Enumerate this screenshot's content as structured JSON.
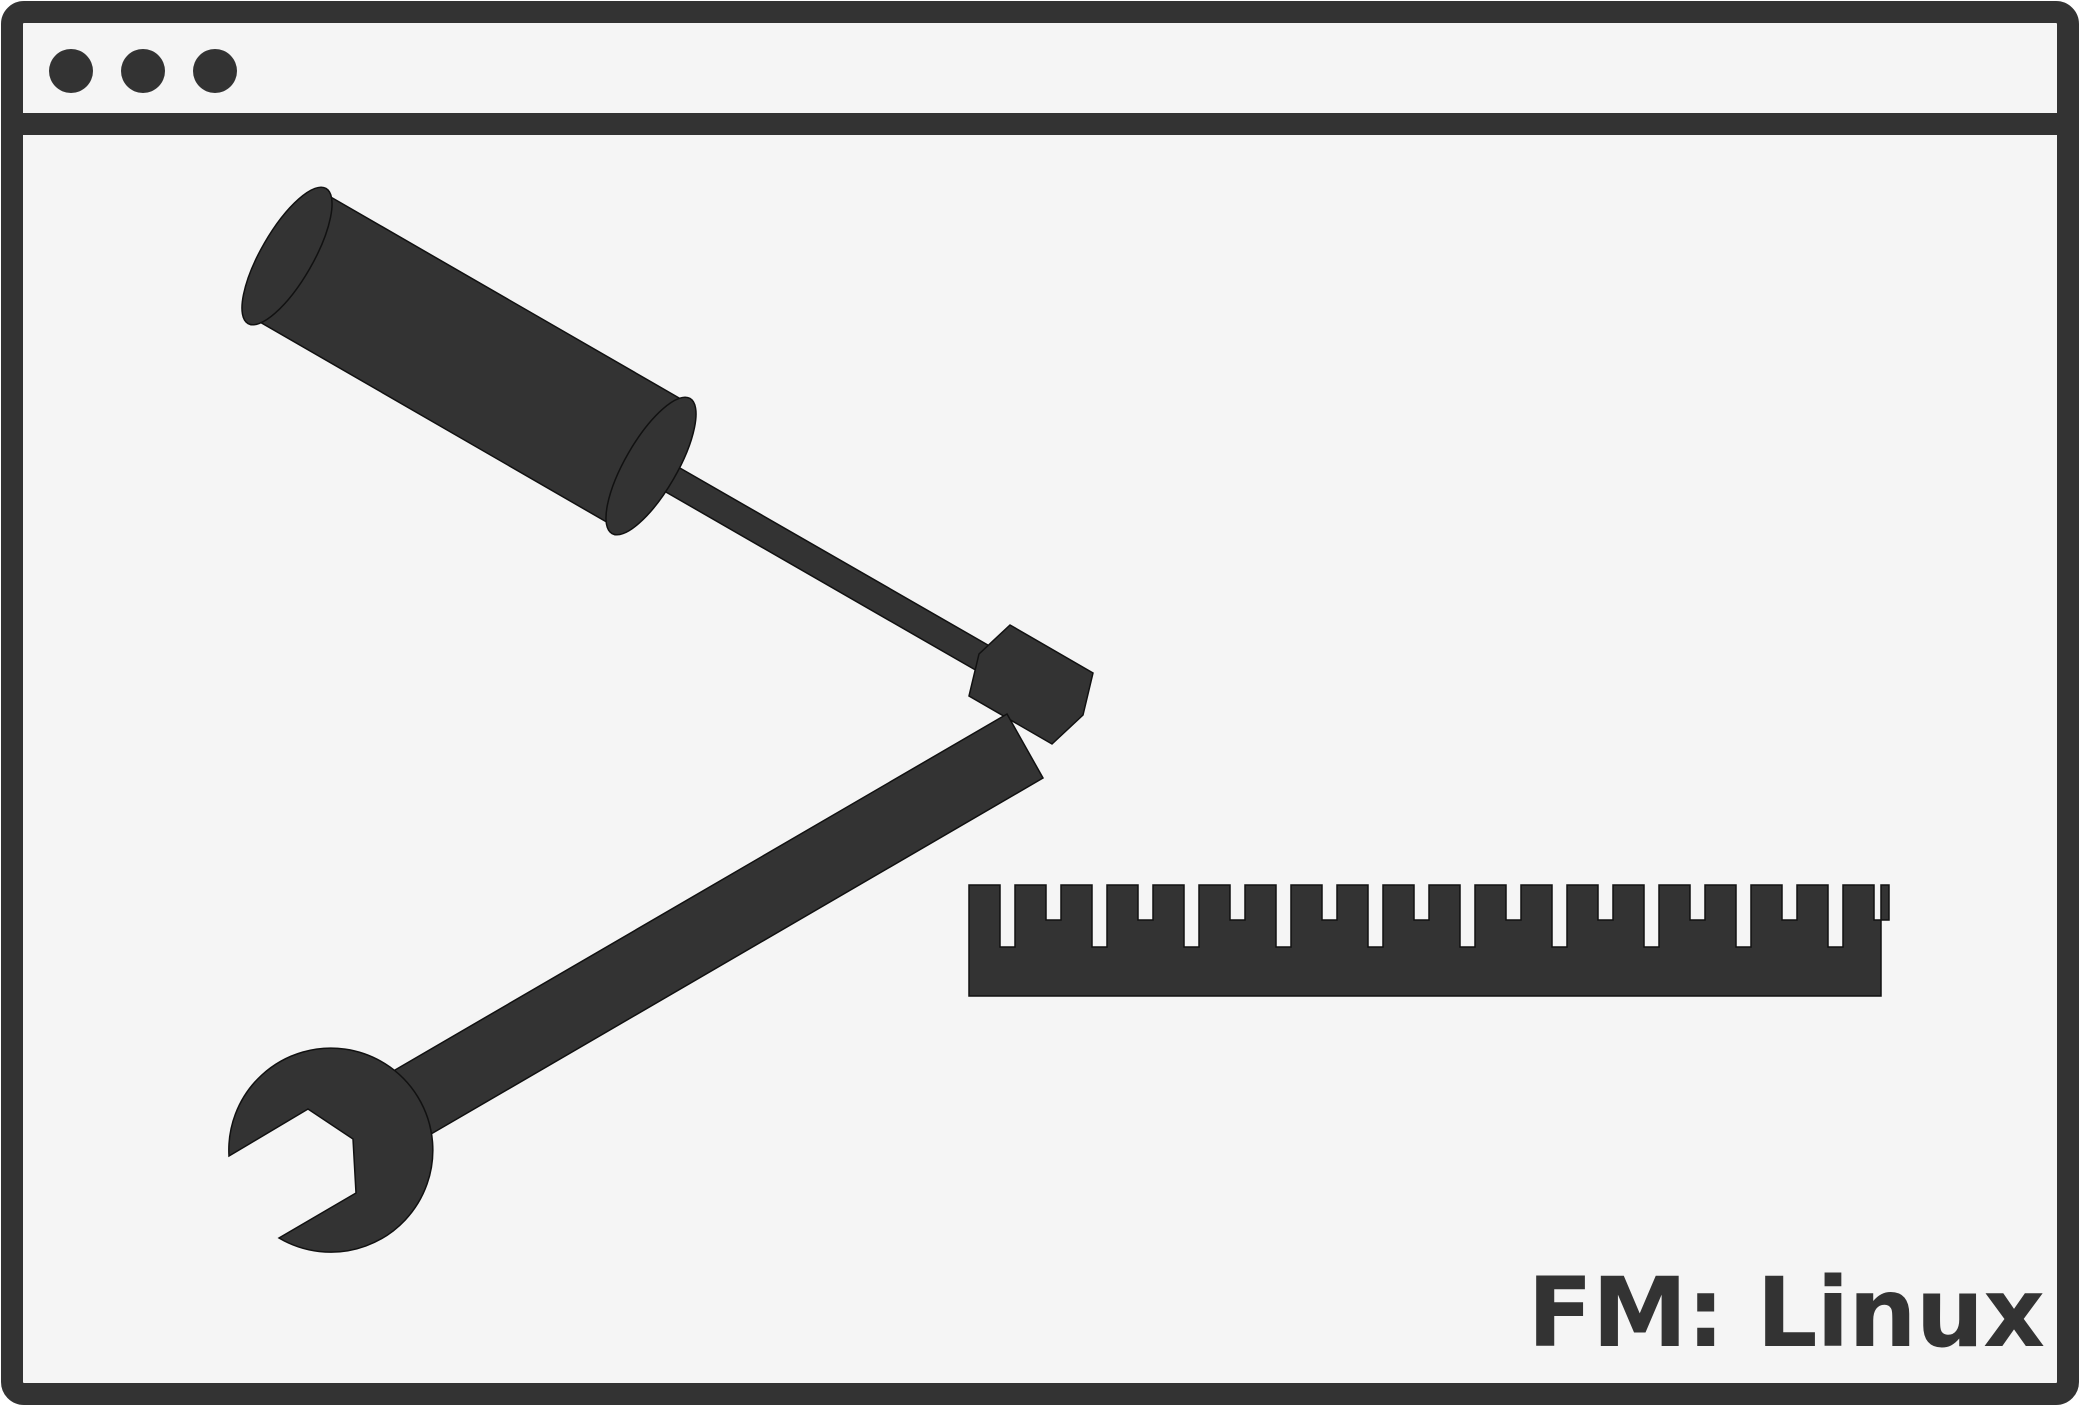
{
  "window": {
    "background_color": "#f5f5f5",
    "frame_color": "#333333",
    "controls": [
      {
        "icon": "window-control-dot"
      },
      {
        "icon": "window-control-dot"
      },
      {
        "icon": "window-control-dot"
      }
    ]
  },
  "illustration": {
    "icons": [
      "screwdriver-icon",
      "wrench-icon",
      "ruler-icon"
    ],
    "fill_color": "#333333"
  },
  "brand": {
    "label": "FM: Linux",
    "color": "#333333"
  }
}
